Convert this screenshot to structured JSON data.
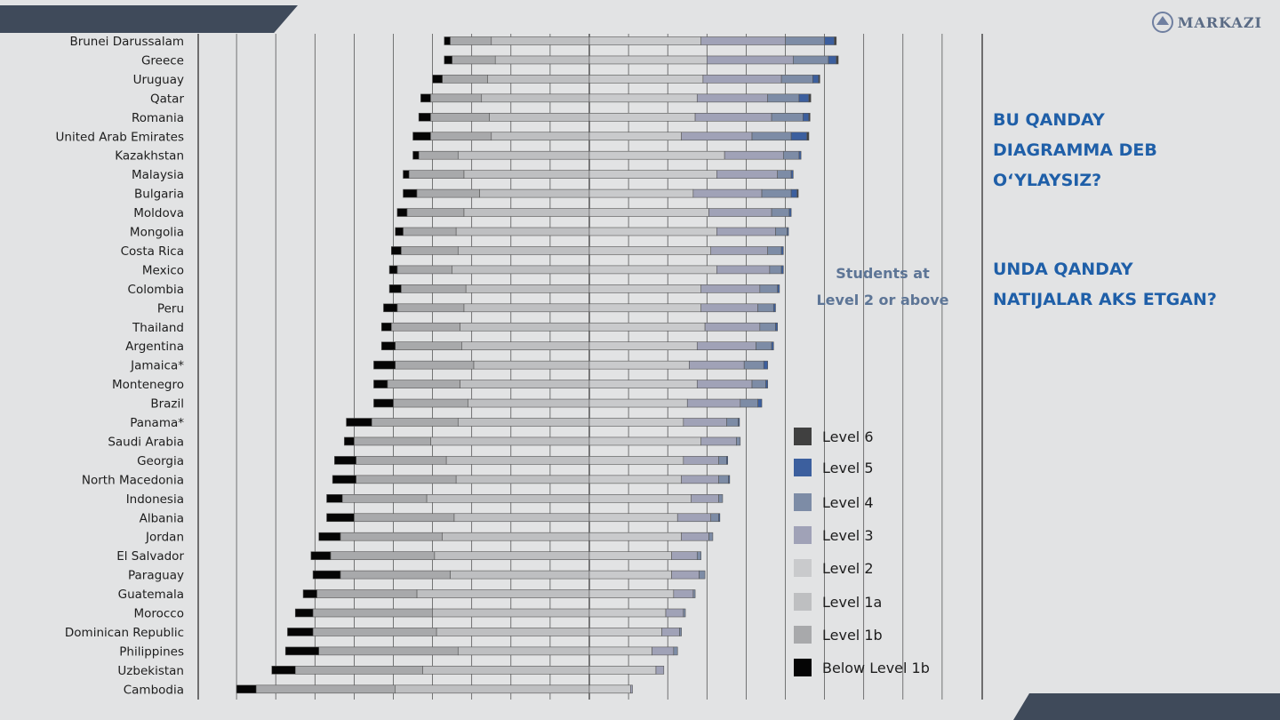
{
  "logo": {
    "text": "MARKAZI"
  },
  "questions": [
    "BU QANDAY\nDIAGRAMMA DEB\nO‘YLAYSIZ?",
    " UNDA QANDAY\nNATIJALAR AKS ETGAN?"
  ],
  "chart_data": {
    "type": "bar",
    "stacked": "diverging",
    "annotation": "Students at Level 2 or above",
    "legend": [
      "Level 6",
      "Level 5",
      "Level 4",
      "Level 3",
      "Level 2",
      "Level 1a",
      "Level 1b",
      "Below Level 1b"
    ],
    "colors": {
      "Below Level 1b": "#050505",
      "Level 1b": "#a8a9ab",
      "Level 1a": "#bebfc1",
      "Level 2": "#c9cacc",
      "Level 3": "#a0a2b7",
      "Level 4": "#7d8ca6",
      "Level 5": "#3c5f9e",
      "Level 6": "#404040"
    },
    "x_range": [
      -100,
      100
    ],
    "rows": [
      {
        "country": "Brunei Darussalam",
        "below": 1.5,
        "l1b": 10.5,
        "l1a": 25,
        "l2": 28.5,
        "l3": 21.5,
        "l4": 10,
        "l5": 2.5,
        "l6": 0.5
      },
      {
        "country": "Greece",
        "below": 2,
        "l1b": 11,
        "l1a": 24,
        "l2": 30,
        "l3": 22,
        "l4": 9,
        "l5": 2,
        "l6": 0.5
      },
      {
        "country": "Uruguay",
        "below": 2.5,
        "l1b": 11.5,
        "l1a": 26,
        "l2": 29,
        "l3": 20,
        "l4": 8,
        "l5": 1.5,
        "l6": 0.3
      },
      {
        "country": "Qatar",
        "below": 2.5,
        "l1b": 13,
        "l1a": 27.5,
        "l2": 27.5,
        "l3": 18,
        "l4": 8,
        "l5": 2.5,
        "l6": 0.5
      },
      {
        "country": "Romania",
        "below": 3,
        "l1b": 15,
        "l1a": 25.5,
        "l2": 27,
        "l3": 19.5,
        "l4": 8,
        "l5": 1.5,
        "l6": 0.3
      },
      {
        "country": "United Arab Emirates",
        "below": 4.5,
        "l1b": 15.5,
        "l1a": 25,
        "l2": 23.5,
        "l3": 18,
        "l4": 10,
        "l5": 4,
        "l6": 0.5
      },
      {
        "country": "Kazakhstan",
        "below": 1.5,
        "l1b": 10,
        "l1a": 33.5,
        "l2": 34.5,
        "l3": 15,
        "l4": 4,
        "l5": 0.5,
        "l6": 0
      },
      {
        "country": "Malaysia",
        "below": 1.5,
        "l1b": 14,
        "l1a": 32,
        "l2": 32.5,
        "l3": 15.5,
        "l4": 3.5,
        "l5": 0.5,
        "l6": 0
      },
      {
        "country": "Bulgaria",
        "below": 3.5,
        "l1b": 16,
        "l1a": 28,
        "l2": 26.5,
        "l3": 17.5,
        "l4": 7.5,
        "l5": 1.5,
        "l6": 0.3
      },
      {
        "country": "Moldova",
        "below": 2.5,
        "l1b": 14.5,
        "l1a": 32,
        "l2": 30.5,
        "l3": 16,
        "l4": 4.5,
        "l5": 0.5,
        "l6": 0
      },
      {
        "country": "Mongolia",
        "below": 2,
        "l1b": 13.5,
        "l1a": 34,
        "l2": 32.5,
        "l3": 15,
        "l4": 3,
        "l5": 0.3,
        "l6": 0
      },
      {
        "country": "Costa Rica",
        "below": 2.5,
        "l1b": 14.5,
        "l1a": 33.5,
        "l2": 31,
        "l3": 14.5,
        "l4": 3.5,
        "l5": 0.5,
        "l6": 0
      },
      {
        "country": "Mexico",
        "below": 2,
        "l1b": 14,
        "l1a": 35,
        "l2": 32.5,
        "l3": 13.5,
        "l4": 3,
        "l5": 0.5,
        "l6": 0
      },
      {
        "country": "Colombia",
        "below": 3,
        "l1b": 16.5,
        "l1a": 31.5,
        "l2": 28.5,
        "l3": 15,
        "l4": 4.5,
        "l5": 0.5,
        "l6": 0
      },
      {
        "country": "Peru",
        "below": 3.5,
        "l1b": 17,
        "l1a": 32,
        "l2": 28.5,
        "l3": 14.5,
        "l4": 4,
        "l5": 0.5,
        "l6": 0
      },
      {
        "country": "Thailand",
        "below": 2.5,
        "l1b": 17.5,
        "l1a": 33,
        "l2": 29.5,
        "l3": 14,
        "l4": 4,
        "l5": 0.5,
        "l6": 0
      },
      {
        "country": "Argentina",
        "below": 3.5,
        "l1b": 17,
        "l1a": 32.5,
        "l2": 27.5,
        "l3": 15,
        "l4": 4,
        "l5": 0.5,
        "l6": 0
      },
      {
        "country": "Jamaica*",
        "below": 5.5,
        "l1b": 20,
        "l1a": 29.5,
        "l2": 25.5,
        "l3": 14,
        "l4": 5,
        "l5": 1,
        "l6": 0
      },
      {
        "country": "Montenegro",
        "below": 3.5,
        "l1b": 18.5,
        "l1a": 33,
        "l2": 27.5,
        "l3": 14,
        "l4": 3.5,
        "l5": 0.5,
        "l6": 0
      },
      {
        "country": "Brazil",
        "below": 5,
        "l1b": 19,
        "l1a": 31,
        "l2": 25,
        "l3": 13.5,
        "l4": 4.5,
        "l5": 1,
        "l6": 0
      },
      {
        "country": "Panama*",
        "below": 6.5,
        "l1b": 22,
        "l1a": 33.5,
        "l2": 24,
        "l3": 11,
        "l4": 3,
        "l5": 0.3,
        "l6": 0
      },
      {
        "country": "Saudi Arabia",
        "below": 2.5,
        "l1b": 19.5,
        "l1a": 40.5,
        "l2": 28.5,
        "l3": 9,
        "l4": 1,
        "l5": 0,
        "l6": 0
      },
      {
        "country": "Georgia",
        "below": 5.5,
        "l1b": 23,
        "l1a": 36.5,
        "l2": 24,
        "l3": 9,
        "l4": 2,
        "l5": 0.3,
        "l6": 0
      },
      {
        "country": "North Macedonia",
        "below": 6,
        "l1b": 25.5,
        "l1a": 34,
        "l2": 23.5,
        "l3": 9.5,
        "l4": 2.5,
        "l5": 0.3,
        "l6": 0
      },
      {
        "country": "Indonesia",
        "below": 4,
        "l1b": 21.5,
        "l1a": 41.5,
        "l2": 26,
        "l3": 7,
        "l4": 1,
        "l5": 0,
        "l6": 0
      },
      {
        "country": "Albania",
        "below": 7,
        "l1b": 25.5,
        "l1a": 34.5,
        "l2": 22.5,
        "l3": 8.5,
        "l4": 2,
        "l5": 0.3,
        "l6": 0
      },
      {
        "country": "Jordan",
        "below": 5.5,
        "l1b": 26,
        "l1a": 37.5,
        "l2": 23.5,
        "l3": 7,
        "l4": 1,
        "l5": 0,
        "l6": 0
      },
      {
        "country": "El Salvador",
        "below": 5,
        "l1b": 26.5,
        "l1a": 39.5,
        "l2": 21,
        "l3": 6.5,
        "l4": 1,
        "l5": 0,
        "l6": 0
      },
      {
        "country": "Paraguay",
        "below": 7,
        "l1b": 28,
        "l1a": 35.5,
        "l2": 21,
        "l3": 7,
        "l4": 1.5,
        "l5": 0,
        "l6": 0
      },
      {
        "country": "Guatemala",
        "below": 3.5,
        "l1b": 25.5,
        "l1a": 44,
        "l2": 21.5,
        "l3": 5,
        "l4": 0.5,
        "l5": 0,
        "l6": 0
      },
      {
        "country": "Morocco",
        "below": 4.5,
        "l1b": 30.5,
        "l1a": 40,
        "l2": 19.5,
        "l3": 4.5,
        "l4": 0.5,
        "l5": 0,
        "l6": 0
      },
      {
        "country": "Dominican Republic",
        "below": 6.5,
        "l1b": 31.5,
        "l1a": 39,
        "l2": 18.5,
        "l3": 4.5,
        "l4": 0.5,
        "l5": 0,
        "l6": 0
      },
      {
        "country": "Philippines",
        "below": 8.5,
        "l1b": 35.5,
        "l1a": 33.5,
        "l2": 16,
        "l3": 5.5,
        "l4": 1,
        "l5": 0,
        "l6": 0
      },
      {
        "country": "Uzbekistan",
        "below": 6,
        "l1b": 32.5,
        "l1a": 42.5,
        "l2": 17,
        "l3": 2,
        "l4": 0,
        "l5": 0,
        "l6": 0
      },
      {
        "country": "Cambodia",
        "below": 5,
        "l1b": 35.5,
        "l1a": 49.5,
        "l2": 10.5,
        "l3": 0.5,
        "l4": 0,
        "l5": 0,
        "l6": 0
      }
    ]
  }
}
